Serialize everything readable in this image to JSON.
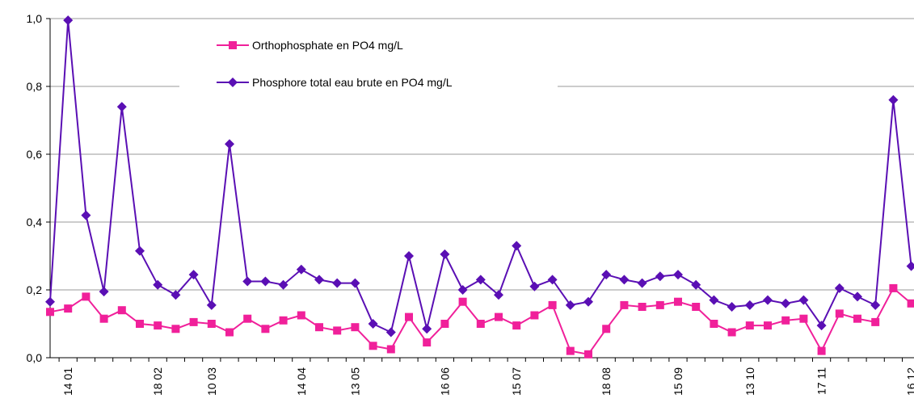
{
  "chart_data": {
    "type": "line",
    "categories": [
      null,
      "14 01",
      null,
      null,
      null,
      null,
      "18 02",
      null,
      null,
      "10 03",
      null,
      null,
      null,
      null,
      "14 04",
      null,
      null,
      "13 05",
      null,
      null,
      null,
      null,
      "16 06",
      null,
      null,
      null,
      "15 07",
      null,
      null,
      null,
      null,
      "18 08",
      null,
      null,
      null,
      "15 09",
      null,
      null,
      null,
      "13 10",
      null,
      null,
      null,
      "17 11",
      null,
      null,
      null,
      null,
      "16 12"
    ],
    "series": [
      {
        "name": "Orthophosphate en PO4 mg/L",
        "color": "#f0209a",
        "marker": "square",
        "values": [
          0.135,
          0.145,
          0.18,
          0.115,
          0.14,
          0.1,
          0.095,
          0.085,
          0.105,
          0.1,
          0.075,
          0.115,
          0.085,
          0.11,
          0.125,
          0.09,
          0.08,
          0.09,
          0.035,
          0.025,
          0.12,
          0.045,
          0.1,
          0.165,
          0.1,
          0.12,
          0.095,
          0.125,
          0.155,
          0.02,
          0.01,
          0.085,
          0.155,
          0.15,
          0.155,
          0.165,
          0.15,
          0.1,
          0.075,
          0.095,
          0.095,
          0.11,
          0.115,
          0.02,
          0.13,
          0.115,
          0.105,
          0.205,
          0.16
        ]
      },
      {
        "name": "Phosphore total eau brute en PO4 mg/L",
        "color": "#5a0fb4",
        "marker": "diamond",
        "values": [
          0.165,
          0.995,
          0.42,
          0.195,
          0.74,
          0.315,
          0.215,
          0.185,
          0.245,
          0.155,
          0.63,
          0.225,
          0.225,
          0.215,
          0.26,
          0.23,
          0.22,
          0.22,
          0.1,
          0.075,
          0.3,
          0.085,
          0.305,
          0.2,
          0.23,
          0.185,
          0.33,
          0.21,
          0.23,
          0.155,
          0.165,
          0.245,
          0.23,
          0.22,
          0.24,
          0.245,
          0.215,
          0.17,
          0.15,
          0.155,
          0.17,
          0.16,
          0.17,
          0.095,
          0.205,
          0.18,
          0.155,
          0.76,
          0.27
        ]
      }
    ],
    "ylim": [
      0,
      1
    ],
    "yticks": [
      {
        "value": 0,
        "label": "0,0"
      },
      {
        "value": 0.2,
        "label": "0,2"
      },
      {
        "value": 0.4,
        "label": "0,4"
      },
      {
        "value": 0.6,
        "label": "0,6"
      },
      {
        "value": 0.8,
        "label": "0,8"
      },
      {
        "value": 1,
        "label": "1,0"
      }
    ],
    "grid": true
  }
}
